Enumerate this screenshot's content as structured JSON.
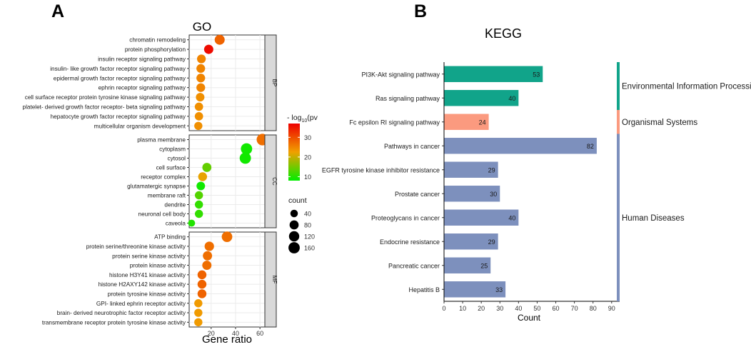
{
  "panel_a": {
    "letter": "A"
  },
  "panel_b": {
    "letter": "B"
  },
  "chart_data": [
    {
      "type": "scatter",
      "title": "GO",
      "xlabel": "Gene ratio",
      "xlim": [
        2,
        64
      ],
      "xticks": [
        20,
        40,
        60
      ],
      "color_legend": {
        "title_prefix": "- log",
        "title_sub": "10",
        "title_suffix": "(pv",
        "range": [
          8,
          37
        ],
        "ticks": [
          30,
          20,
          10
        ],
        "low_color": "#00ee00",
        "mid_color": "#f0a000",
        "high_color": "#ee0000"
      },
      "size_legend": {
        "title": "count",
        "values": [
          40,
          80,
          120,
          160
        ]
      },
      "colors": {
        "strip": "#d9d9d9",
        "border": "#333333",
        "grid": "#ebebeb",
        "panel": "#ffffff"
      },
      "facets": [
        {
          "label": "BP",
          "terms": [
            {
              "name": "chromatin remodeling",
              "x": 27,
              "count": 110,
              "p": 28
            },
            {
              "name": "protein phosphorylation",
              "x": 18,
              "count": 85,
              "p": 36
            },
            {
              "name": "insulin receptor signaling pathway",
              "x": 12,
              "count": 70,
              "p": 25
            },
            {
              "name": "insulin- like growth factor receptor signaling pathway",
              "x": 11.5,
              "count": 70,
              "p": 25
            },
            {
              "name": "epidermal growth factor receptor signaling pathway",
              "x": 11.5,
              "count": 70,
              "p": 25
            },
            {
              "name": "ephrin receptor signaling pathway",
              "x": 11.5,
              "count": 70,
              "p": 25
            },
            {
              "name": "cell surface receptor protein tyrosine kinase signaling pathway",
              "x": 11,
              "count": 65,
              "p": 24
            },
            {
              "name": "platelet- derived growth factor receptor- beta signaling pathway",
              "x": 10,
              "count": 60,
              "p": 24
            },
            {
              "name": "hepatocyte growth factor receptor signaling pathway",
              "x": 10,
              "count": 60,
              "p": 24
            },
            {
              "name": "multicellular organism development",
              "x": 9.5,
              "count": 55,
              "p": 24
            }
          ]
        },
        {
          "label": "CC",
          "terms": [
            {
              "name": "plasma membrane",
              "x": 62,
              "count": 170,
              "p": 27
            },
            {
              "name": "cytoplasm",
              "x": 49,
              "count": 160,
              "p": 9
            },
            {
              "name": "cytosol",
              "x": 48,
              "count": 160,
              "p": 9
            },
            {
              "name": "cell surface",
              "x": 16.5,
              "count": 80,
              "p": 14
            },
            {
              "name": "receptor complex",
              "x": 13,
              "count": 75,
              "p": 22
            },
            {
              "name": "glutamatergic synapse",
              "x": 11.5,
              "count": 65,
              "p": 9
            },
            {
              "name": "membrane raft",
              "x": 10,
              "count": 55,
              "p": 13
            },
            {
              "name": "dendrite",
              "x": 10,
              "count": 55,
              "p": 11
            },
            {
              "name": "neuronal cell body",
              "x": 10,
              "count": 55,
              "p": 11
            },
            {
              "name": "caveola",
              "x": 4,
              "count": 30,
              "p": 10
            }
          ]
        },
        {
          "label": "MF",
          "terms": [
            {
              "name": "ATP binding",
              "x": 33,
              "count": 130,
              "p": 27
            },
            {
              "name": "protein serine/threonine kinase activity",
              "x": 18.5,
              "count": 90,
              "p": 27
            },
            {
              "name": "protein serine kinase activity",
              "x": 17,
              "count": 85,
              "p": 27
            },
            {
              "name": "protein kinase activity",
              "x": 16.5,
              "count": 85,
              "p": 27
            },
            {
              "name": "histone H3Y41 kinase activity",
              "x": 12.5,
              "count": 75,
              "p": 28
            },
            {
              "name": "histone H2AXY142 kinase activity",
              "x": 12.5,
              "count": 75,
              "p": 28
            },
            {
              "name": "protein tyrosine kinase activity",
              "x": 12.5,
              "count": 75,
              "p": 28
            },
            {
              "name": "GPI- linked ephrin receptor activity",
              "x": 9.5,
              "count": 55,
              "p": 23
            },
            {
              "name": "brain- derived neurotrophic factor receptor activity",
              "x": 9.5,
              "count": 55,
              "p": 23
            },
            {
              "name": "transmembrane receptor protein tyrosine kinase activity",
              "x": 9.5,
              "count": 55,
              "p": 23
            }
          ]
        }
      ]
    },
    {
      "type": "bar",
      "orientation": "horizontal",
      "title": "KEGG",
      "xlabel": "Count",
      "xlim": [
        0,
        92
      ],
      "xticks": [
        0,
        10,
        20,
        30,
        40,
        50,
        60,
        70,
        80,
        90
      ],
      "categories": [
        "PI3K-Akt signaling pathway",
        "Ras signaling pathway",
        "Fc epsilon RI signaling pathway",
        "Pathways in cancer",
        "EGFR tyrosine kinase inhibitor resistance",
        "Prostate cancer",
        "Proteoglycans in cancer",
        "Endocrine resistance",
        "Pancreatic cancer",
        "Hepatitis B"
      ],
      "values": [
        53,
        40,
        24,
        82,
        29,
        30,
        40,
        29,
        25,
        33
      ],
      "groups": [
        "Environmental Information Processing",
        "Environmental Information Processing",
        "Organismal Systems",
        "Human Diseases",
        "Human Diseases",
        "Human Diseases",
        "Human Diseases",
        "Human Diseases",
        "Human Diseases",
        "Human Diseases"
      ],
      "group_labels": [
        {
          "name": "Environmental Information Processing",
          "color": "#11a48a"
        },
        {
          "name": "Organismal Systems",
          "color": "#fb9a7f"
        },
        {
          "name": "Human Diseases",
          "color": "#7d90bd"
        }
      ]
    }
  ]
}
